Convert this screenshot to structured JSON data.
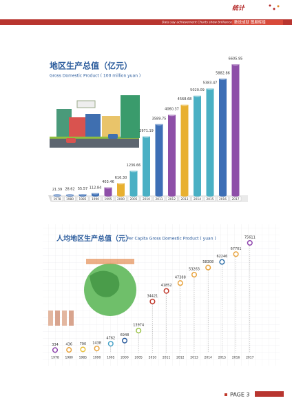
{
  "header": {
    "logo": "统计",
    "tagline": "Data say achievement   Charts show brilliance",
    "title": "数说成就 图展辉煌"
  },
  "chart_data": [
    {
      "type": "bar",
      "title": "地区生产总值（亿元）",
      "subtitle": "Gross Domestic Product ( 100 million yuan )",
      "categories": [
        "1978",
        "1980",
        "1985",
        "1990",
        "1995",
        "2000",
        "2005",
        "2010",
        "2011",
        "2012",
        "2013",
        "2014",
        "2015",
        "2016",
        "2017"
      ],
      "values": [
        21.39,
        28.62,
        55.57,
        112.84,
        403.46,
        616.3,
        1236.66,
        2971.19,
        3589.75,
        4060.37,
        4568.68,
        5020.09,
        5383.47,
        5882.86,
        6605.95
      ],
      "value_labels": [
        "21.39",
        "28.62",
        "55.57",
        "112.84",
        "403.46",
        "616.30",
        "1236.66",
        "2971.19",
        "3589.75",
        "4060.37",
        "4568.68",
        "5020.09",
        "5383.47",
        "5882.86",
        "6605.95"
      ],
      "colors": [
        "#3d6fb6",
        "#3d6fb6",
        "#3d6fb6",
        "#3d6fb6",
        "#8e4fa8",
        "#e8b030",
        "#4ab0c4",
        "#4ab0c4",
        "#3d6fb6",
        "#8e4fa8",
        "#e8b030",
        "#4ab0c4",
        "#4ab0c4",
        "#3d6fb6",
        "#8e4fa8"
      ]
    },
    {
      "type": "dot",
      "title": "人均地区生产总值（元）",
      "subtitle": "Per Capita Gross Domestic Product ( yuan )",
      "categories": [
        "1978",
        "1980",
        "1985",
        "1990",
        "1995",
        "2000",
        "2005",
        "2010",
        "2011",
        "2012",
        "2013",
        "2014",
        "2015",
        "2016",
        "2017"
      ],
      "values": [
        334,
        436,
        790,
        1438,
        4762,
        6948,
        13974,
        34421,
        41852,
        47388,
        53263,
        58308,
        62246,
        67701,
        75611
      ],
      "colors": [
        "#8e44ad",
        "#e8a33d",
        "#e8c13d",
        "#e8a33d",
        "#4aa3c8",
        "#2e5e9e",
        "#9bc44a",
        "#c0392b",
        "#c0392b",
        "#e8a33d",
        "#e8a33d",
        "#e8a33d",
        "#2e6fa8",
        "#e8a33d",
        "#8e44ad"
      ]
    }
  ],
  "footer": {
    "page": "PAGE 3"
  }
}
